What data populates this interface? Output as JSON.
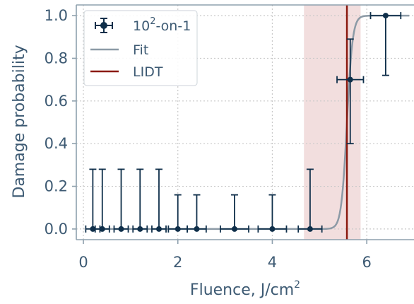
{
  "chart_data": {
    "type": "scatter",
    "xlabel": "Fluence, J/cm",
    "xlabel_sup": "2",
    "ylabel": "Damage probability",
    "xlim": [
      -0.15,
      7.0
    ],
    "ylim": [
      -0.05,
      1.05
    ],
    "xticks": [
      0,
      2,
      4,
      6
    ],
    "yticks": [
      0.0,
      0.2,
      0.4,
      0.6,
      0.8,
      1.0
    ],
    "xtick_labels": [
      "0",
      "2",
      "4",
      "6"
    ],
    "ytick_labels": [
      "0.0",
      "0.2",
      "0.4",
      "0.6",
      "0.8",
      "1.0"
    ],
    "grid": true,
    "legend_position": "top-left",
    "series": [
      {
        "name": "10",
        "name_sup": "2",
        "name_suffix": "-on-1",
        "kind": "errorbar",
        "color": "#0f2f4a",
        "points": [
          {
            "x": 0.2,
            "y": 0.0,
            "xerr": 0.15,
            "yerr_low": 0.0,
            "yerr_high": 0.28
          },
          {
            "x": 0.4,
            "y": 0.0,
            "xerr": 0.15,
            "yerr_low": 0.0,
            "yerr_high": 0.28
          },
          {
            "x": 0.8,
            "y": 0.0,
            "xerr": 0.15,
            "yerr_low": 0.0,
            "yerr_high": 0.28
          },
          {
            "x": 1.2,
            "y": 0.0,
            "xerr": 0.15,
            "yerr_low": 0.0,
            "yerr_high": 0.28
          },
          {
            "x": 1.6,
            "y": 0.0,
            "xerr": 0.15,
            "yerr_low": 0.0,
            "yerr_high": 0.28
          },
          {
            "x": 2.0,
            "y": 0.0,
            "xerr": 0.2,
            "yerr_low": 0.0,
            "yerr_high": 0.16
          },
          {
            "x": 2.4,
            "y": 0.0,
            "xerr": 0.2,
            "yerr_low": 0.0,
            "yerr_high": 0.16
          },
          {
            "x": 3.2,
            "y": 0.0,
            "xerr": 0.3,
            "yerr_low": 0.0,
            "yerr_high": 0.16
          },
          {
            "x": 4.0,
            "y": 0.0,
            "xerr": 0.3,
            "yerr_low": 0.0,
            "yerr_high": 0.16
          },
          {
            "x": 4.8,
            "y": 0.0,
            "xerr": 0.25,
            "yerr_low": 0.0,
            "yerr_high": 0.28
          },
          {
            "x": 5.65,
            "y": 0.7,
            "xerr": 0.28,
            "yerr_low": 0.3,
            "yerr_high": 0.19
          },
          {
            "x": 6.4,
            "y": 1.0,
            "xerr": 0.32,
            "yerr_low": 0.28,
            "yerr_high": 0.0
          }
        ]
      },
      {
        "name": "Fit",
        "kind": "line",
        "color": "#8c9aa6",
        "function": "logistic",
        "center": 5.58,
        "scale": 0.06
      },
      {
        "name": "LIDT",
        "kind": "vline",
        "color": "#8b1a10",
        "x": 5.58
      }
    ],
    "shaded_band": {
      "x0": 4.67,
      "x1": 5.87,
      "color": "#f2dede"
    }
  }
}
